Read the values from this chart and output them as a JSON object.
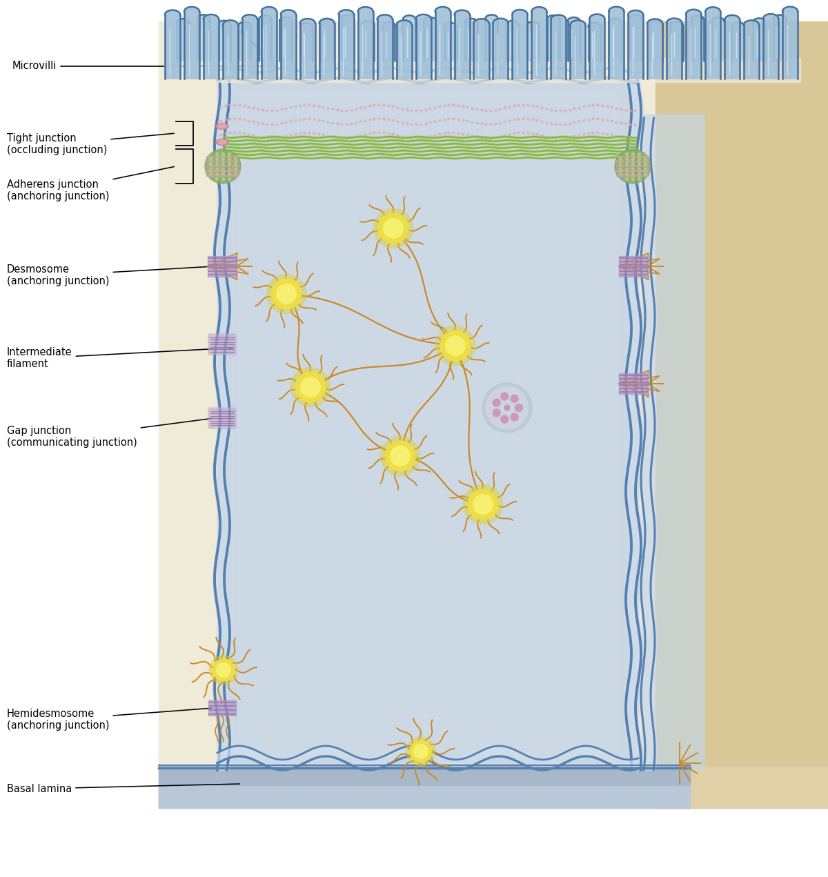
{
  "bg_color": "#ffffff",
  "bg_yellow": "#f0ead8",
  "cell_fill": "#c5d5e5",
  "cell_fill2": "#d0dcea",
  "cell_border": "#5580b0",
  "mv_fill": "#b0ccdd",
  "mv_fill2": "#a0c0d8",
  "mv_border": "#4470a0",
  "green_fil": "#88b844",
  "orange_fil": "#cc8822",
  "yellow_node": "#eedd44",
  "yellow_node2": "#f5f070",
  "purple_junc": "#b090c0",
  "purple_junc2": "#9977aa",
  "green_circle": "#88aa66",
  "pink_dot": "#ddaabb",
  "basal_fill": "#a8b8c8",
  "basal_fill2": "#b8c8d8",
  "right_fill": "#d8c898",
  "right_fill2": "#e0d0a8",
  "white": "#ffffff",
  "labels": {
    "microvilli": "Microvilli",
    "tight": "Tight junction\n(occluding junction)",
    "adherens": "Adherens junction\n(anchoring junction)",
    "desmosome": "Desmosome\n(anchoring junction)",
    "intermediate": "Intermediate\nfilament",
    "gap": "Gap junction\n(communicating junction)",
    "hemidesmosome": "Hemidesmosome\n(anchoring junction)",
    "basal": "Basal lamina"
  }
}
